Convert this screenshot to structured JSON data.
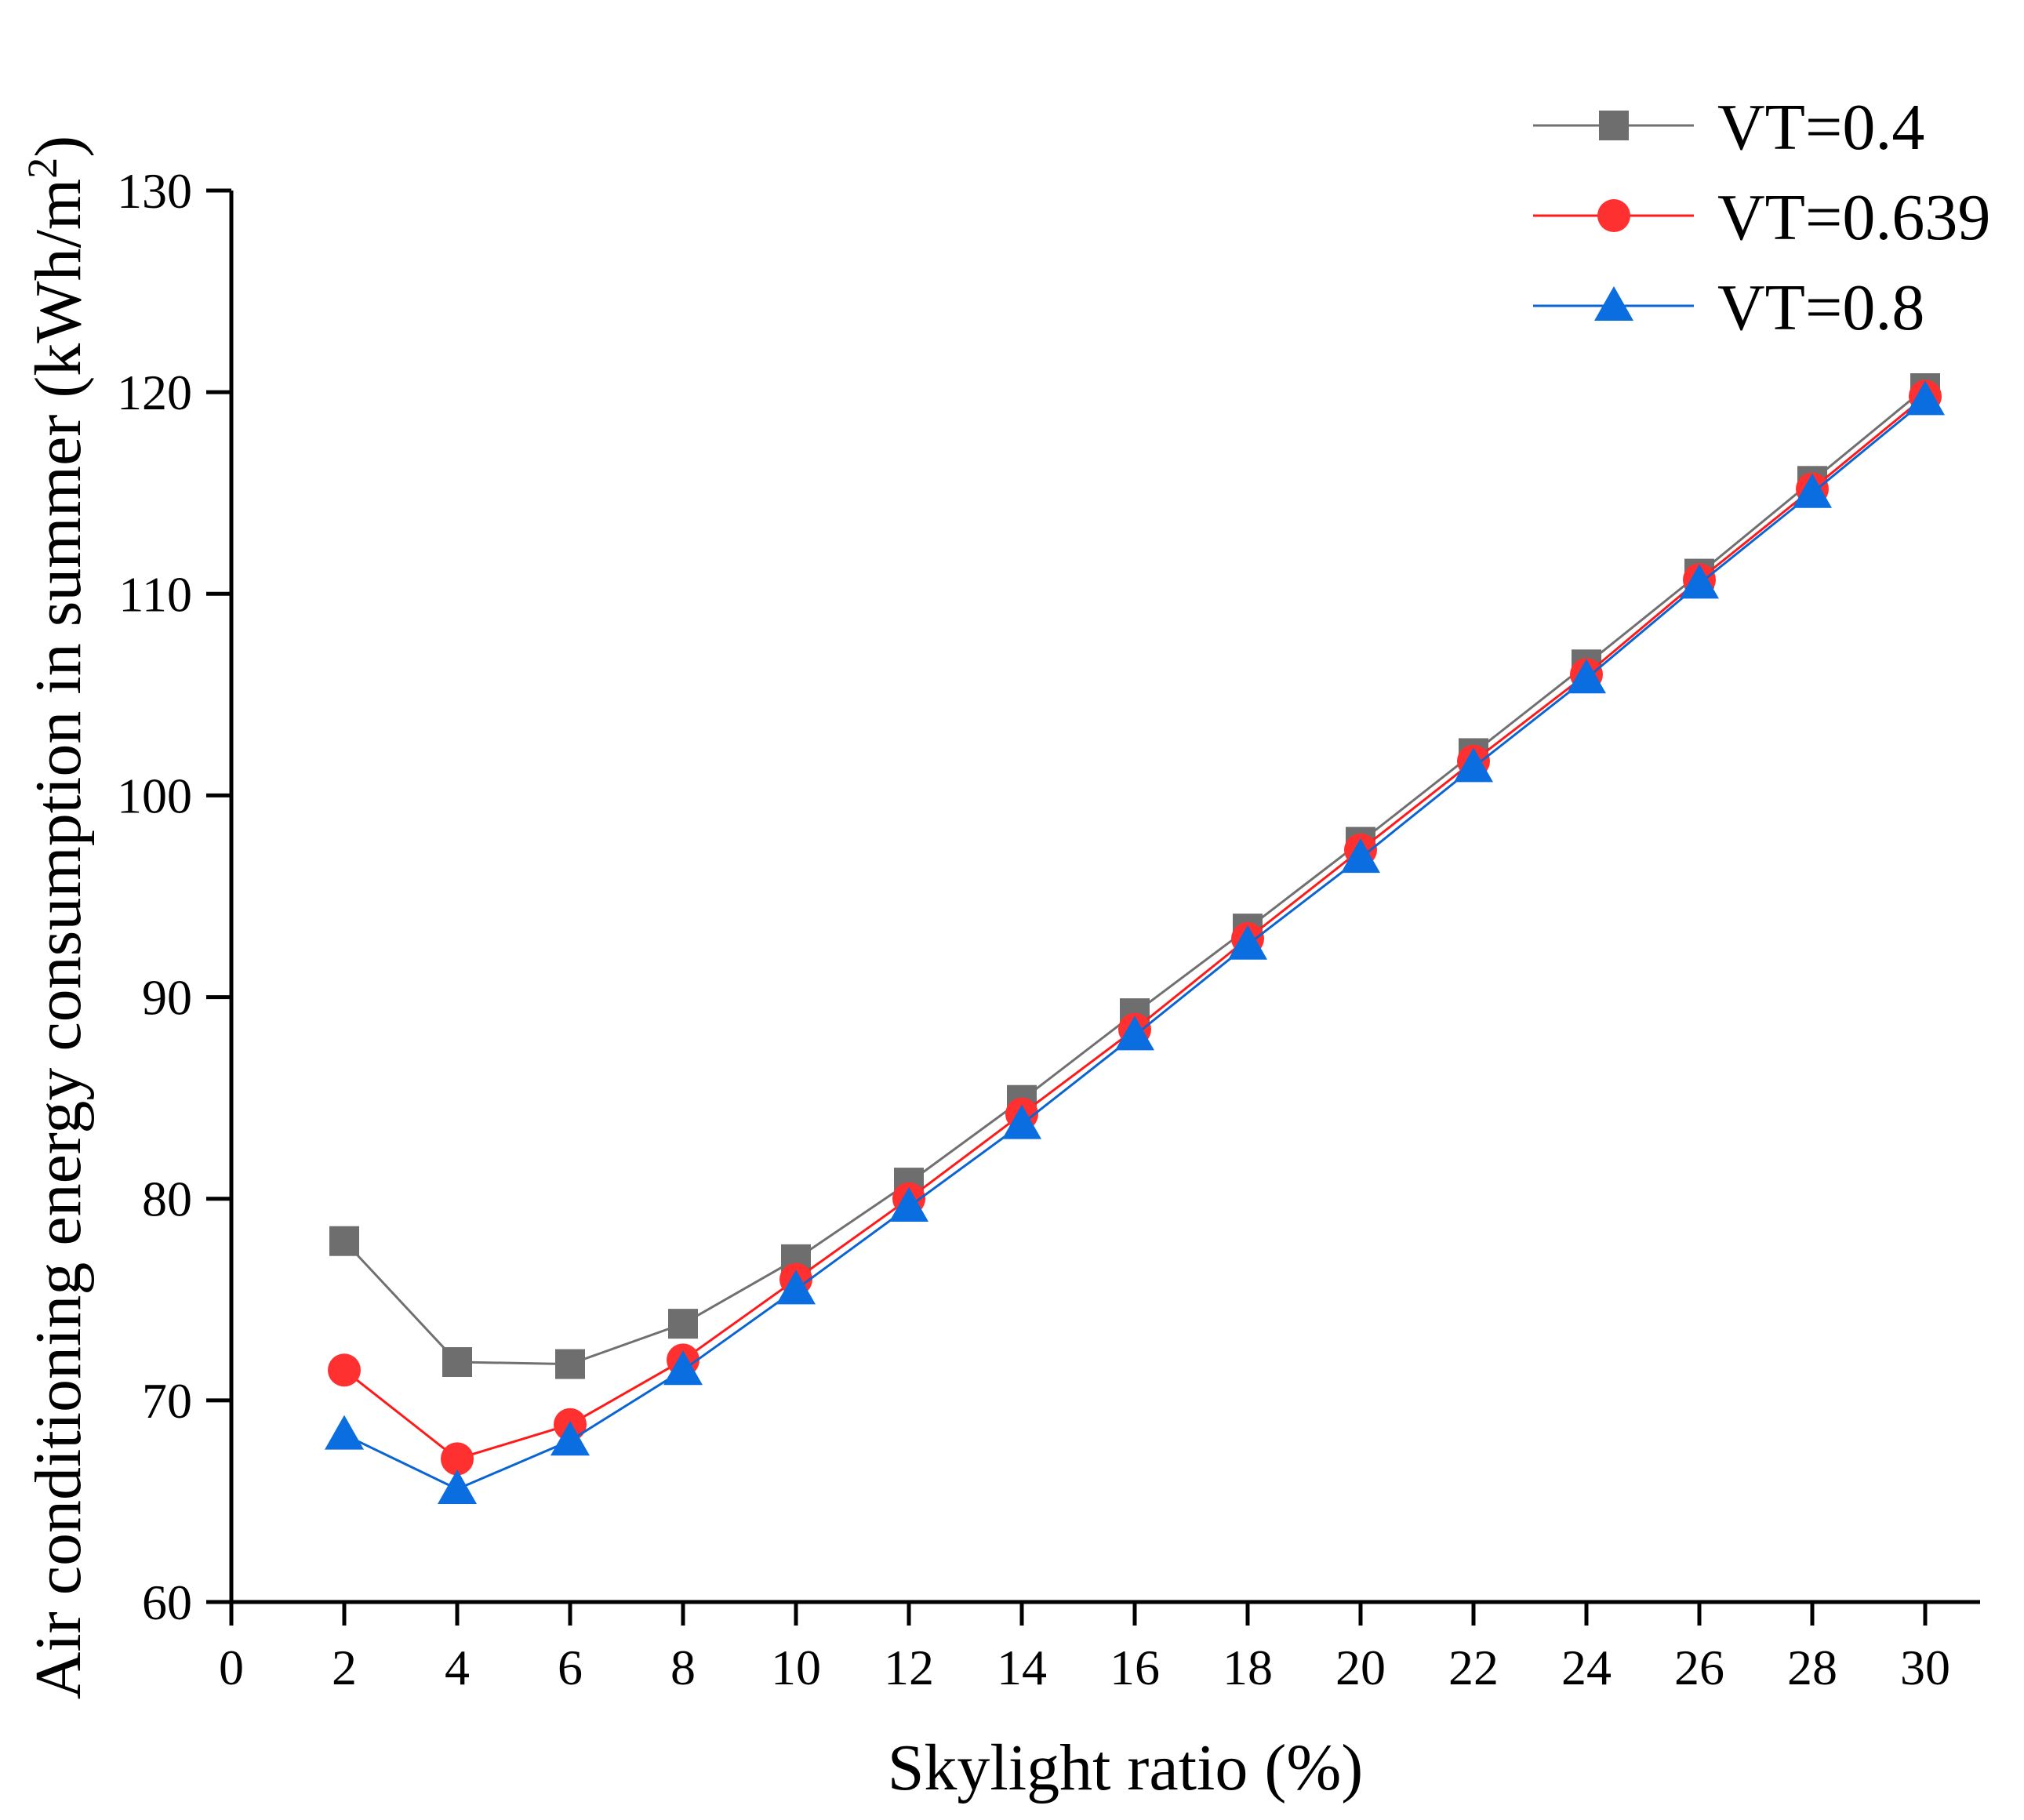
{
  "chart_data": {
    "type": "line",
    "title": "",
    "xlabel": "Skylight ratio (%)",
    "ylabel": {
      "text": "Air conditioning energy consumption in summer (kWh/m",
      "sup": "2",
      "close": ")"
    },
    "xlim": [
      0,
      31
    ],
    "ylim": [
      60,
      130
    ],
    "xticks": [
      "0",
      "2",
      "4",
      "6",
      "8",
      "10",
      "12",
      "14",
      "16",
      "18",
      "20",
      "22",
      "24",
      "26",
      "28",
      "30"
    ],
    "yticks": [
      "60",
      "70",
      "80",
      "90",
      "100",
      "110",
      "120",
      "130"
    ],
    "grid": false,
    "legend_position": "top-right",
    "x": [
      2,
      4,
      6,
      8,
      10,
      12,
      14,
      16,
      18,
      20,
      22,
      24,
      26,
      28,
      30
    ],
    "series": [
      {
        "name": "VT=0.4",
        "marker": "square",
        "color": "#6e6e6e",
        "line_color": "#707070",
        "values": [
          77.9,
          71.9,
          71.8,
          73.8,
          77.0,
          80.8,
          84.9,
          89.2,
          93.4,
          97.7,
          102.1,
          106.5,
          111.0,
          115.6,
          120.2
        ]
      },
      {
        "name": "VT=0.639",
        "marker": "circle",
        "color": "#ff3030",
        "line_color": "#ff1a1a",
        "values": [
          71.5,
          67.1,
          68.8,
          72.0,
          76.0,
          80.0,
          84.2,
          88.4,
          92.9,
          97.3,
          101.7,
          106.0,
          110.7,
          115.2,
          119.8
        ]
      },
      {
        "name": "VT=0.8",
        "marker": "triangle",
        "color": "#0a6ee0",
        "line_color": "#0a64d2",
        "values": [
          68.3,
          65.6,
          68.0,
          71.5,
          75.5,
          79.6,
          83.7,
          88.1,
          92.6,
          96.9,
          101.4,
          105.8,
          110.5,
          115.0,
          119.6
        ]
      }
    ]
  }
}
